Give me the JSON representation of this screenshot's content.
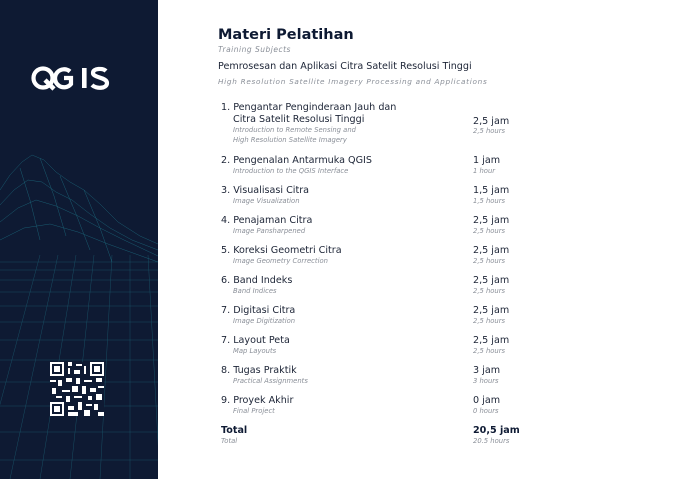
{
  "brand": {
    "logo_text": "QGIS"
  },
  "header": {
    "title": "Materi Pelatihan",
    "title_en": "Training Subjects",
    "subtitle": "Pemrosesan dan Aplikasi Citra Satelit Resolusi Tinggi",
    "subtitle_en": "High Resolution Satellite Imagery Processing and Applications"
  },
  "items": [
    {
      "title_line1": "1. Pengantar Penginderaan Jauh dan",
      "title_line2": "Citra Satelit Resolusi Tinggi",
      "en_line1": "Introduction to Remote Sensing and",
      "en_line2": "High Resolution Satellite Imagery",
      "duration": "2,5 jam",
      "duration_en": "2,5 hours"
    },
    {
      "title": "2. Pengenalan Antarmuka QGIS",
      "en": "Introduction to the QGIS Interface",
      "duration": "1 jam",
      "duration_en": "1 hour"
    },
    {
      "title": "3. Visualisasi Citra",
      "en": "Image Visualization",
      "duration": "1,5 jam",
      "duration_en": "1,5 hours"
    },
    {
      "title": "4. Penajaman Citra",
      "en": "Image Pansharpened",
      "duration": "2,5 jam",
      "duration_en": "2,5 hours"
    },
    {
      "title": "5. Koreksi Geometri Citra",
      "en": "Image Geometry Correction",
      "duration": "2,5 jam",
      "duration_en": "2,5 hours"
    },
    {
      "title": "6. Band Indeks",
      "en": "Band Indices",
      "duration": "2,5 jam",
      "duration_en": "2,5 hours"
    },
    {
      "title": "7. Digitasi Citra",
      "en": "Image Digitization",
      "duration": "2,5 jam",
      "duration_en": "2,5 hours"
    },
    {
      "title": "7. Layout Peta",
      "en": "Map Layouts",
      "duration": "2,5 jam",
      "duration_en": "2,5 hours"
    },
    {
      "title": "8. Tugas Praktik",
      "en": "Practical Assignments",
      "duration": "3 jam",
      "duration_en": "3 hours"
    },
    {
      "title": "9. Proyek Akhir",
      "en": "Final Project",
      "duration": "0 jam",
      "duration_en": "0 hours"
    }
  ],
  "total": {
    "label": "Total",
    "label_en": "Total",
    "duration": "20,5 jam",
    "duration_en": "20.5 hours"
  },
  "colors": {
    "sidebar": "#0e1a33",
    "grid": "#1f7a8c",
    "title": "#0e1a33",
    "muted": "#8a8f98"
  }
}
